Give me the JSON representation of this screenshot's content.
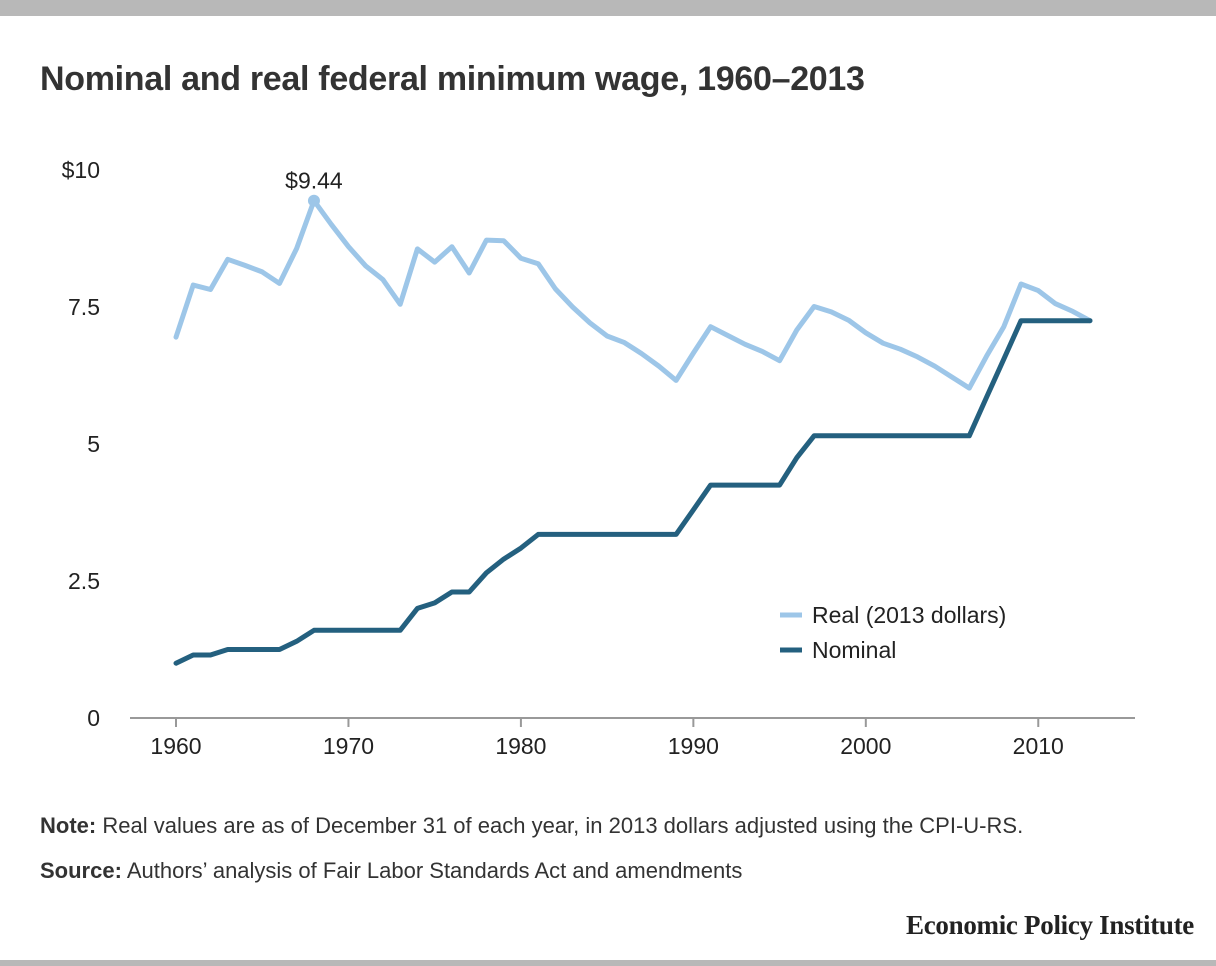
{
  "chart_data": {
    "type": "line",
    "title": "Nominal and real federal minimum wage, 1960–2013",
    "xlabel": "",
    "ylabel": "",
    "xlim": [
      1960,
      2013
    ],
    "ylim": [
      0,
      10
    ],
    "x_ticks": [
      1960,
      1970,
      1980,
      1990,
      2000,
      2010
    ],
    "y_ticks": [
      {
        "value": 0,
        "label": "0"
      },
      {
        "value": 2.5,
        "label": "2.5"
      },
      {
        "value": 5,
        "label": "5"
      },
      {
        "value": 7.5,
        "label": "7.5"
      },
      {
        "value": 10,
        "label": "$10"
      }
    ],
    "grid": false,
    "legend_position": "lower-right",
    "x": [
      1960,
      1961,
      1962,
      1963,
      1964,
      1965,
      1966,
      1967,
      1968,
      1969,
      1970,
      1971,
      1972,
      1973,
      1974,
      1975,
      1976,
      1977,
      1978,
      1979,
      1980,
      1981,
      1982,
      1983,
      1984,
      1985,
      1986,
      1987,
      1988,
      1989,
      1990,
      1991,
      1992,
      1993,
      1994,
      1995,
      1996,
      1997,
      1998,
      1999,
      2000,
      2001,
      2002,
      2003,
      2004,
      2005,
      2006,
      2007,
      2008,
      2009,
      2010,
      2011,
      2012,
      2013
    ],
    "series": [
      {
        "name": "Real (2013 dollars)",
        "color": "#9dc6e8",
        "values": [
          6.95,
          7.9,
          7.82,
          8.37,
          8.26,
          8.14,
          7.93,
          8.57,
          9.44,
          9.01,
          8.6,
          8.25,
          8.0,
          7.55,
          8.56,
          8.32,
          8.6,
          8.12,
          8.72,
          8.71,
          8.39,
          8.29,
          7.83,
          7.5,
          7.21,
          6.97,
          6.85,
          6.65,
          6.42,
          6.16,
          6.66,
          7.14,
          6.98,
          6.82,
          6.69,
          6.52,
          7.08,
          7.51,
          7.41,
          7.26,
          7.03,
          6.84,
          6.73,
          6.59,
          6.42,
          6.22,
          6.02,
          6.6,
          7.14,
          7.92,
          7.8,
          7.56,
          7.42,
          7.25
        ]
      },
      {
        "name": "Nominal",
        "color": "#24607f",
        "values": [
          1.0,
          1.15,
          1.15,
          1.25,
          1.25,
          1.25,
          1.25,
          1.4,
          1.6,
          1.6,
          1.6,
          1.6,
          1.6,
          1.6,
          2.0,
          2.1,
          2.3,
          2.3,
          2.65,
          2.9,
          3.1,
          3.35,
          3.35,
          3.35,
          3.35,
          3.35,
          3.35,
          3.35,
          3.35,
          3.35,
          3.8,
          4.25,
          4.25,
          4.25,
          4.25,
          4.25,
          4.75,
          5.15,
          5.15,
          5.15,
          5.15,
          5.15,
          5.15,
          5.15,
          5.15,
          5.15,
          5.15,
          5.85,
          6.55,
          7.25,
          7.25,
          7.25,
          7.25,
          7.25
        ]
      }
    ],
    "annotations": [
      {
        "x": 1968,
        "y": 9.44,
        "series": "Real (2013 dollars)",
        "text": "$9.44"
      }
    ]
  },
  "notes": {
    "note_label": "Note:",
    "note_text": "Real values are as of December 31 of each year, in 2013 dollars adjusted using the CPI-U-RS.",
    "source_label": "Source:",
    "source_text": "Authors’ analysis of Fair Labor Standards Act and amendments"
  },
  "brand": "Economic Policy Institute"
}
